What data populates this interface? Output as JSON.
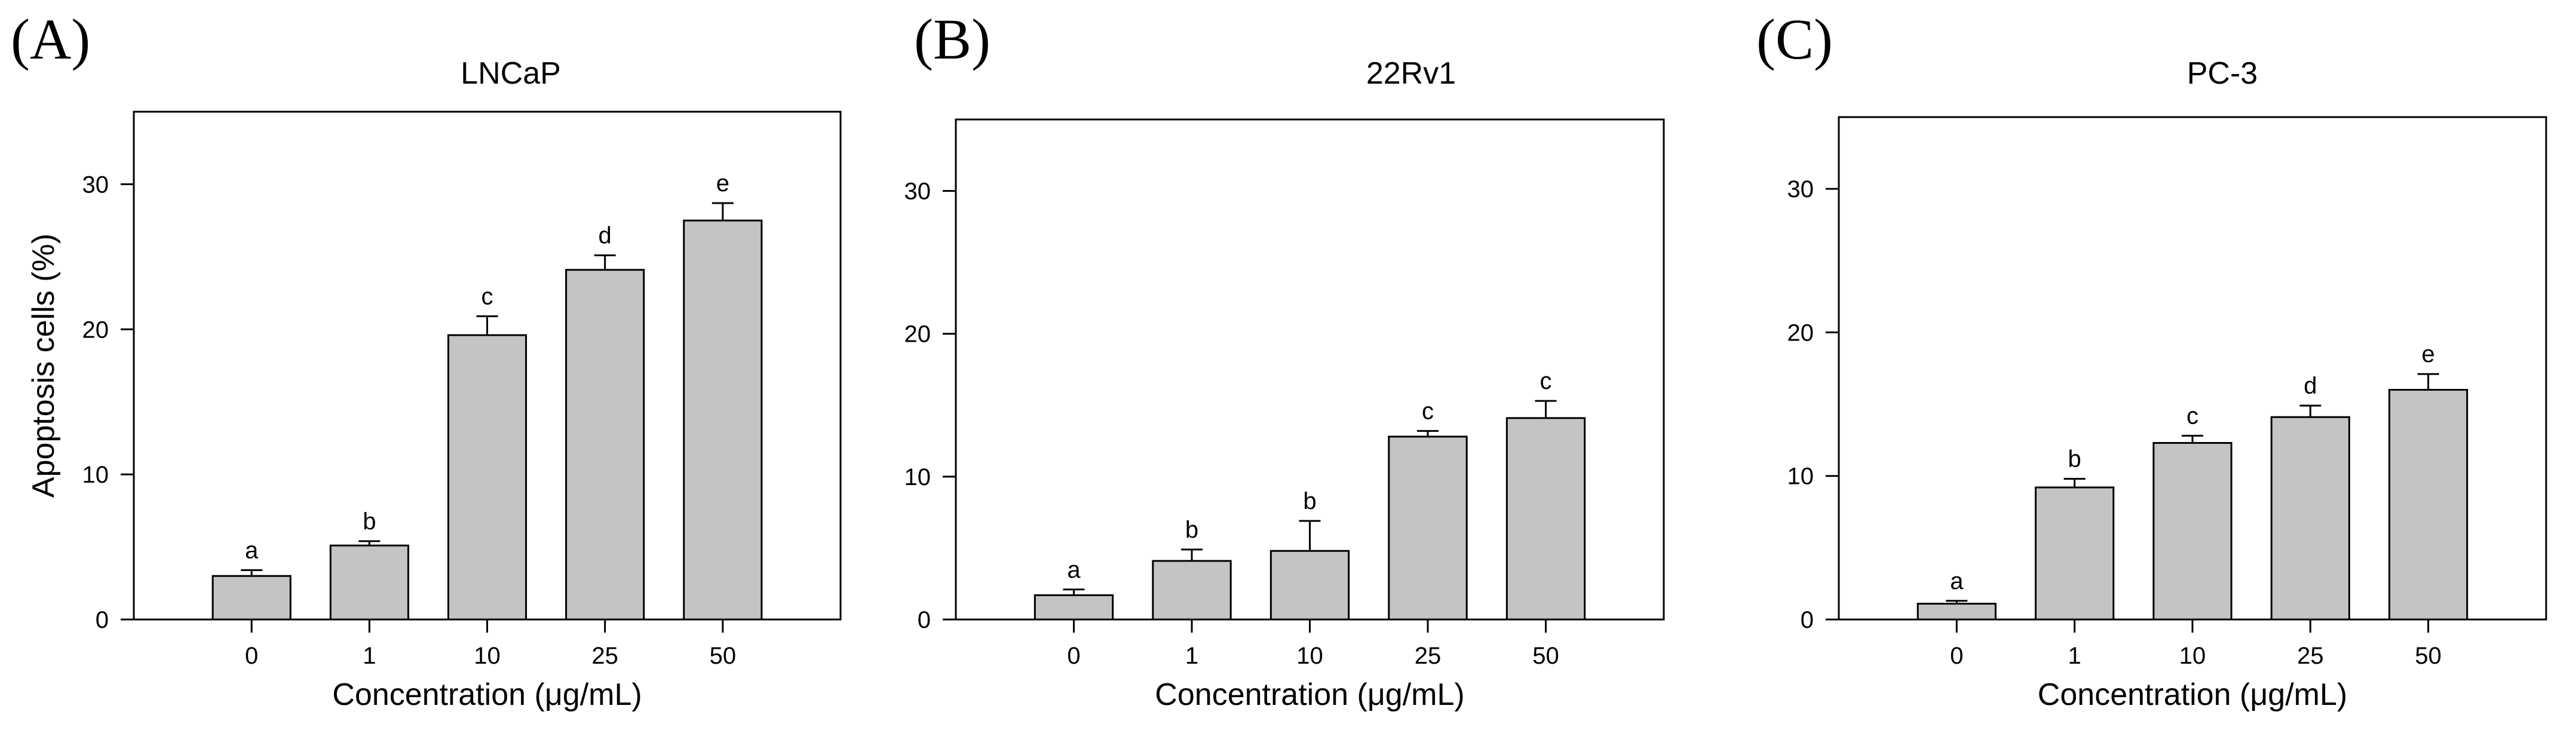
{
  "figure": {
    "bar_color": "#c4c4c4",
    "bar_stroke": "#000000"
  },
  "chart_data": [
    {
      "type": "bar",
      "panel_label": "(A)",
      "title": "LNCaP",
      "xlabel": "Concentration (μg/mL)",
      "ylabel": "Apoptosis cells (%)",
      "ylim": [
        0,
        35
      ],
      "yticks": [
        0,
        10,
        20,
        30
      ],
      "categories": [
        "0",
        "1",
        "10",
        "25",
        "50"
      ],
      "values": [
        3.0,
        5.1,
        19.6,
        24.1,
        27.5
      ],
      "errors": [
        0.4,
        0.3,
        1.3,
        1.0,
        1.2
      ],
      "letters": [
        "a",
        "b",
        "c",
        "d",
        "e"
      ]
    },
    {
      "type": "bar",
      "panel_label": "(B)",
      "title": "22Rv1",
      "xlabel": "Concentration (μg/mL)",
      "ylabel": "",
      "ylim": [
        0,
        35
      ],
      "yticks": [
        0,
        10,
        20,
        30
      ],
      "categories": [
        "0",
        "1",
        "10",
        "25",
        "50"
      ],
      "values": [
        1.7,
        4.1,
        4.8,
        12.8,
        14.1
      ],
      "errors": [
        0.4,
        0.8,
        2.1,
        0.4,
        1.2
      ],
      "letters": [
        "a",
        "b",
        "b",
        "c",
        "c"
      ]
    },
    {
      "type": "bar",
      "panel_label": "(C)",
      "title": "PC-3",
      "xlabel": "Concentration (μg/mL)",
      "ylabel": "",
      "ylim": [
        0,
        35
      ],
      "yticks": [
        0,
        10,
        20,
        30
      ],
      "categories": [
        "0",
        "1",
        "10",
        "25",
        "50"
      ],
      "values": [
        1.1,
        9.2,
        12.3,
        14.1,
        16.0
      ],
      "errors": [
        0.2,
        0.6,
        0.5,
        0.8,
        1.1
      ],
      "letters": [
        "a",
        "b",
        "c",
        "d",
        "e"
      ]
    }
  ]
}
